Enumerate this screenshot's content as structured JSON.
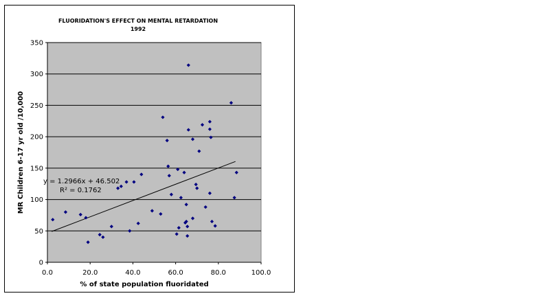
{
  "chart_data": {
    "type": "scatter",
    "title": "FLUORIDATION'S EFFECT ON MENTAL RETARDATION",
    "subtitle": "1992",
    "xlabel": "% of state population fluoridated",
    "ylabel": "MR Children 6-17 yr old /10,000",
    "xlim": [
      0,
      100
    ],
    "ylim": [
      0,
      350
    ],
    "xticks": [
      "0.0",
      "20.0",
      "40.0",
      "60.0",
      "80.0",
      "100.0"
    ],
    "yticks": [
      "0",
      "50",
      "100",
      "150",
      "200",
      "250",
      "300",
      "350"
    ],
    "grid": "horizontal",
    "point_color": "#000080",
    "plot_background": "#c0c0c0",
    "trendline": {
      "slope": 1.2966,
      "intercept": 46.502,
      "x_range": [
        2,
        88
      ],
      "equation": "y = 1.2966x + 46.502",
      "r_squared": "R² = 0.1762"
    },
    "points": [
      {
        "x": 2.5,
        "y": 68
      },
      {
        "x": 8.5,
        "y": 80
      },
      {
        "x": 15.5,
        "y": 76
      },
      {
        "x": 18,
        "y": 71
      },
      {
        "x": 19,
        "y": 32
      },
      {
        "x": 24.5,
        "y": 44
      },
      {
        "x": 26,
        "y": 40
      },
      {
        "x": 30,
        "y": 57
      },
      {
        "x": 33,
        "y": 118
      },
      {
        "x": 34.5,
        "y": 121
      },
      {
        "x": 37,
        "y": 128
      },
      {
        "x": 38.5,
        "y": 50
      },
      {
        "x": 40.5,
        "y": 128
      },
      {
        "x": 42.5,
        "y": 62
      },
      {
        "x": 44,
        "y": 140
      },
      {
        "x": 49,
        "y": 82
      },
      {
        "x": 53,
        "y": 77
      },
      {
        "x": 54,
        "y": 231
      },
      {
        "x": 56,
        "y": 194
      },
      {
        "x": 56.5,
        "y": 153
      },
      {
        "x": 57,
        "y": 138
      },
      {
        "x": 58,
        "y": 108
      },
      {
        "x": 60.5,
        "y": 45
      },
      {
        "x": 61,
        "y": 148
      },
      {
        "x": 61.5,
        "y": 55
      },
      {
        "x": 62.5,
        "y": 103
      },
      {
        "x": 64,
        "y": 143
      },
      {
        "x": 64.5,
        "y": 63
      },
      {
        "x": 65,
        "y": 65
      },
      {
        "x": 65,
        "y": 92
      },
      {
        "x": 65.5,
        "y": 57
      },
      {
        "x": 65.5,
        "y": 42
      },
      {
        "x": 66,
        "y": 314
      },
      {
        "x": 66,
        "y": 211
      },
      {
        "x": 68,
        "y": 196
      },
      {
        "x": 68,
        "y": 70
      },
      {
        "x": 69.5,
        "y": 124
      },
      {
        "x": 70,
        "y": 118
      },
      {
        "x": 71,
        "y": 177
      },
      {
        "x": 72.5,
        "y": 219
      },
      {
        "x": 74,
        "y": 88
      },
      {
        "x": 76,
        "y": 224
      },
      {
        "x": 76,
        "y": 212
      },
      {
        "x": 76,
        "y": 110
      },
      {
        "x": 76.5,
        "y": 199
      },
      {
        "x": 77,
        "y": 65
      },
      {
        "x": 78.5,
        "y": 58
      },
      {
        "x": 86,
        "y": 254
      },
      {
        "x": 87.5,
        "y": 103
      },
      {
        "x": 88.5,
        "y": 143
      }
    ]
  }
}
